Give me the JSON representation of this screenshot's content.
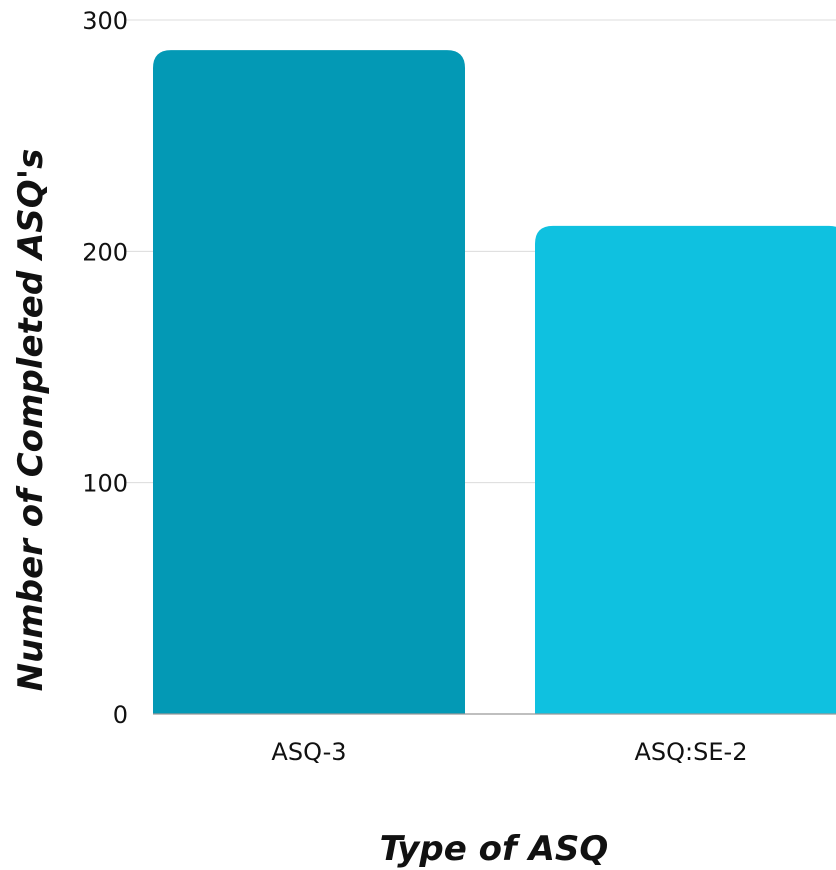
{
  "chart_data": {
    "type": "bar",
    "title": "",
    "xlabel": "Type of ASQ",
    "ylabel": "Number of Completed ASQ's",
    "categories": [
      "ASQ-3",
      "ASQ:SE-2"
    ],
    "values": [
      287,
      211
    ],
    "ylim": [
      0,
      300
    ],
    "yticks": [
      0,
      100,
      200,
      300
    ],
    "grid": true,
    "legend": "none",
    "colors": [
      "#0399b5",
      "#0fc1e0"
    ]
  }
}
